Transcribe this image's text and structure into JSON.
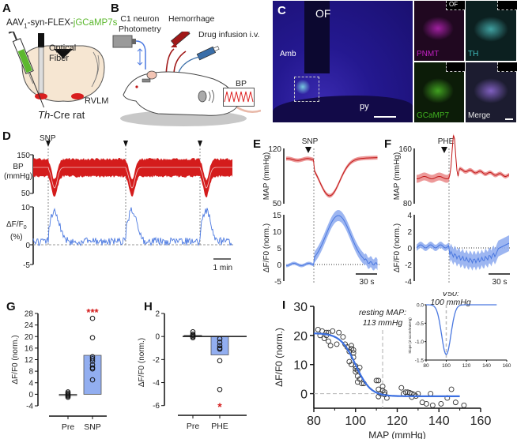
{
  "figure": {
    "panels": {
      "A": {
        "label": "A",
        "virus_prefix": "AAV",
        "virus_sub": "1",
        "virus_mid": "-syn-FLEX-",
        "virus_gene": "jGCaMP7s",
        "fiber_label_1": "Optical",
        "fiber_label_2": "Fiber",
        "region_label": "RVLM",
        "animal_italic": "Th",
        "animal_rest": "-Cre rat",
        "gene_color": "#5cb82e"
      },
      "B": {
        "label": "B",
        "photometry_1": "C1 neuron",
        "photometry_2": "Photometry",
        "hemorrhage": "Hemorrhage",
        "drug": "Drug infusion i.v.",
        "bp": "BP"
      },
      "C": {
        "label": "C",
        "of_label": "OF",
        "amb_label": "Amb",
        "py_label": "py",
        "tiles": [
          {
            "name": "PNMT",
            "color": "#c020c0"
          },
          {
            "name": "TH",
            "color": "#40c0c0"
          },
          {
            "name": "GCaMP7",
            "color": "#40b020"
          },
          {
            "name": "Merge",
            "color": "#e8e8e8"
          }
        ],
        "tile_of_label": "OF"
      },
      "D": {
        "label": "D",
        "stim": "SNP",
        "bp_ylabel_1": "BP",
        "bp_ylabel_2": "(mmHg)",
        "bp_ticks": [
          "150",
          "50"
        ],
        "df_ylabel_1": "ΔF/F",
        "df_ylabel_sub": "0",
        "df_ylabel_2": "(%)",
        "df_ticks": [
          "10",
          "0",
          "-5"
        ],
        "scale_bar": "1 min"
      },
      "E": {
        "label": "E",
        "stim": "SNP",
        "map_ylabel": "MAP (mmHg)",
        "map_ticks": [
          "120",
          "50"
        ],
        "df_ylabel": "ΔF/F0 (norm.)",
        "df_ticks": [
          "15",
          "10",
          "5",
          "0",
          "-5"
        ],
        "scale_bar": "30 s"
      },
      "F": {
        "label": "F",
        "stim": "PHE",
        "map_ylabel": "MAP (mmHg)",
        "map_ticks": [
          "160",
          "80"
        ],
        "df_ylabel": "ΔF/F0 (norm.)",
        "df_ticks": [
          "4",
          "2",
          "0",
          "-2",
          "-4"
        ],
        "scale_bar": "30 s"
      },
      "G": {
        "label": "G",
        "significance": "***"
      },
      "H": {
        "label": "H",
        "significance": "*"
      },
      "I": {
        "label": "I",
        "resting_1": "resting MAP:",
        "resting_2": "113 mmHg",
        "v50_1": "V50:",
        "v50_2": "100 mmHg",
        "inset_ylabel": "Slope (Z-score/mmHg)"
      }
    }
  },
  "chart_data": [
    {
      "id": "G",
      "type": "bar",
      "categories": [
        "Pre",
        "SNP"
      ],
      "values": [
        -0.3,
        13.5
      ],
      "points": [
        [
          -1.0,
          -0.6,
          -0.3,
          0.0,
          0.4,
          0.8
        ],
        [
          5,
          8.8,
          9.2,
          10.2,
          11.5,
          12.3,
          13.0,
          19.6,
          26.3
        ]
      ],
      "ylabel": "ΔF/F0 (norm.)",
      "yticks": [
        -4,
        0,
        4,
        8,
        12,
        16,
        20,
        24,
        28
      ],
      "ylim": [
        -4,
        28
      ],
      "bar_color": "#92aef0",
      "annotation": "***"
    },
    {
      "id": "H",
      "type": "bar",
      "categories": [
        "Pre",
        "PHE"
      ],
      "values": [
        0.1,
        -1.6
      ],
      "points": [
        [
          -0.1,
          0.0,
          0.1,
          0.2,
          0.4
        ],
        [
          -0.2,
          -0.5,
          -0.8,
          -1.0,
          -1.1,
          -2.1,
          -4.6
        ]
      ],
      "ylabel": "ΔF/F0 (norm.)",
      "yticks": [
        -6,
        -4,
        -2,
        0,
        2
      ],
      "ylim": [
        -6.5,
        2
      ],
      "bar_color": "#92aef0",
      "annotation": "*"
    },
    {
      "id": "I",
      "type": "scatter",
      "xlabel": "MAP (mmHg)",
      "ylabel": "ΔF/F0 (norm.)",
      "xticks": [
        80,
        100,
        120,
        140,
        160
      ],
      "yticks": [
        0,
        10,
        20,
        30
      ],
      "xlim": [
        80,
        160
      ],
      "ylim": [
        -5,
        30
      ],
      "fit": {
        "top": 20.8,
        "bottom": -0.9,
        "v50": 100,
        "slope": 3.6,
        "x_range": [
          80,
          150
        ]
      },
      "reference_x": 113,
      "points": [
        [
          82,
          22
        ],
        [
          83,
          20
        ],
        [
          84,
          21.5
        ],
        [
          85,
          19
        ],
        [
          86,
          21
        ],
        [
          86,
          20
        ],
        [
          87,
          18
        ],
        [
          87,
          21
        ],
        [
          88,
          16.5
        ],
        [
          89,
          21.5
        ],
        [
          91,
          17
        ],
        [
          92,
          21
        ],
        [
          94,
          19.5
        ],
        [
          95,
          17
        ],
        [
          96,
          16
        ],
        [
          97,
          11
        ],
        [
          97,
          14.5
        ],
        [
          98,
          10
        ],
        [
          98,
          15.5
        ],
        [
          98,
          16.5
        ],
        [
          99,
          12.5
        ],
        [
          99,
          15
        ],
        [
          99,
          14
        ],
        [
          100,
          9.5
        ],
        [
          100,
          8.5
        ],
        [
          100,
          7.5
        ],
        [
          101,
          8
        ],
        [
          101,
          6
        ],
        [
          101,
          4
        ],
        [
          102,
          5
        ],
        [
          102,
          9
        ],
        [
          103,
          3.5
        ],
        [
          104,
          3.5
        ],
        [
          110,
          4.5
        ],
        [
          111,
          4.5
        ],
        [
          111,
          1.5
        ],
        [
          111,
          -1
        ],
        [
          112,
          0
        ],
        [
          113,
          2.5
        ],
        [
          113,
          1
        ],
        [
          114,
          0.5
        ],
        [
          114,
          -0.3
        ],
        [
          115,
          -1.5
        ],
        [
          122,
          2
        ],
        [
          123,
          0
        ],
        [
          124,
          0.5
        ],
        [
          125,
          0.5
        ],
        [
          126,
          0.3
        ],
        [
          127,
          0
        ],
        [
          127,
          -1.2
        ],
        [
          128,
          -0.3
        ],
        [
          129,
          -0.8
        ],
        [
          130,
          0
        ],
        [
          132,
          -3
        ],
        [
          134,
          -3.5
        ],
        [
          136,
          0
        ],
        [
          137,
          -4
        ],
        [
          141,
          -3.5
        ],
        [
          144,
          -1.5
        ],
        [
          146,
          1.5
        ],
        [
          148,
          -3
        ],
        [
          152,
          -4
        ]
      ],
      "line_color": "#3b6fe0"
    },
    {
      "id": "I-inset",
      "type": "line",
      "ylabel": "Slope (Z-score/mmHg)",
      "xticks": [
        80,
        100,
        120,
        140,
        160
      ],
      "yticks": [
        0.0,
        -0.5,
        -1.0,
        -1.5
      ],
      "ytick_labels": [
        "0.0",
        "-0.5",
        "-1.0",
        "-1.5"
      ],
      "xlim": [
        80,
        160
      ],
      "ylim": [
        -1.5,
        0
      ],
      "gaussian": {
        "center": 100,
        "peak": -1.35,
        "width": 6.5,
        "x_range": [
          80,
          150
        ]
      },
      "reference_x": 100
    }
  ]
}
